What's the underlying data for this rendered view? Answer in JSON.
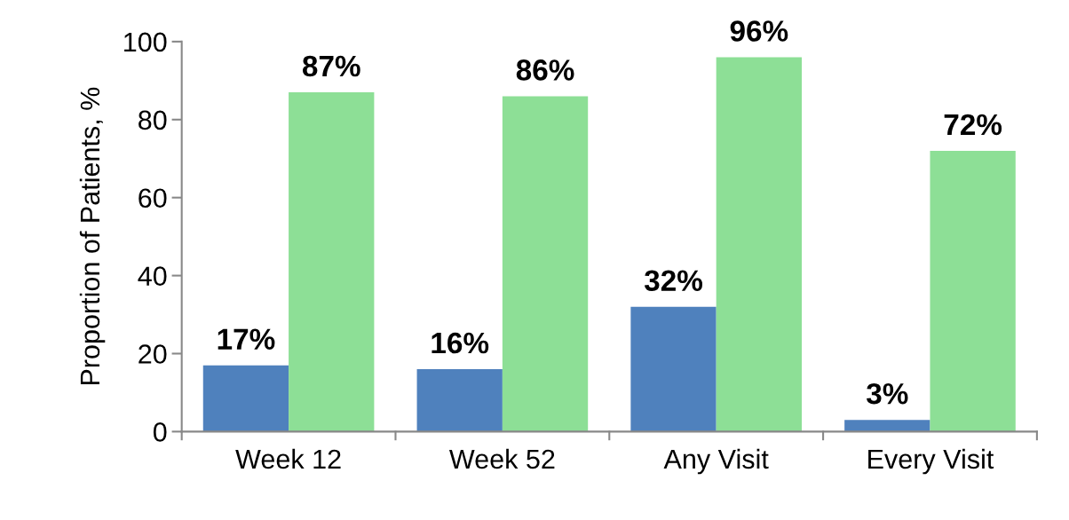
{
  "chart_data": {
    "type": "bar",
    "ylabel": "Proportion of Patients, %",
    "categories": [
      "Week 12",
      "Week 52",
      "Any Visit",
      "Every Visit"
    ],
    "series": [
      {
        "color": "#4f81bd",
        "values": [
          17,
          16,
          32,
          3
        ],
        "value_labels": [
          "17%",
          "16%",
          "32%",
          "3%"
        ]
      },
      {
        "color": "#8ddf96",
        "values": [
          87,
          86,
          96,
          72
        ],
        "value_labels": [
          "87%",
          "86%",
          "96%",
          "72%"
        ]
      }
    ],
    "ylim": [
      0,
      100
    ],
    "yticks": [
      0,
      20,
      40,
      60,
      80,
      100
    ],
    "grid": false,
    "legend": false
  }
}
